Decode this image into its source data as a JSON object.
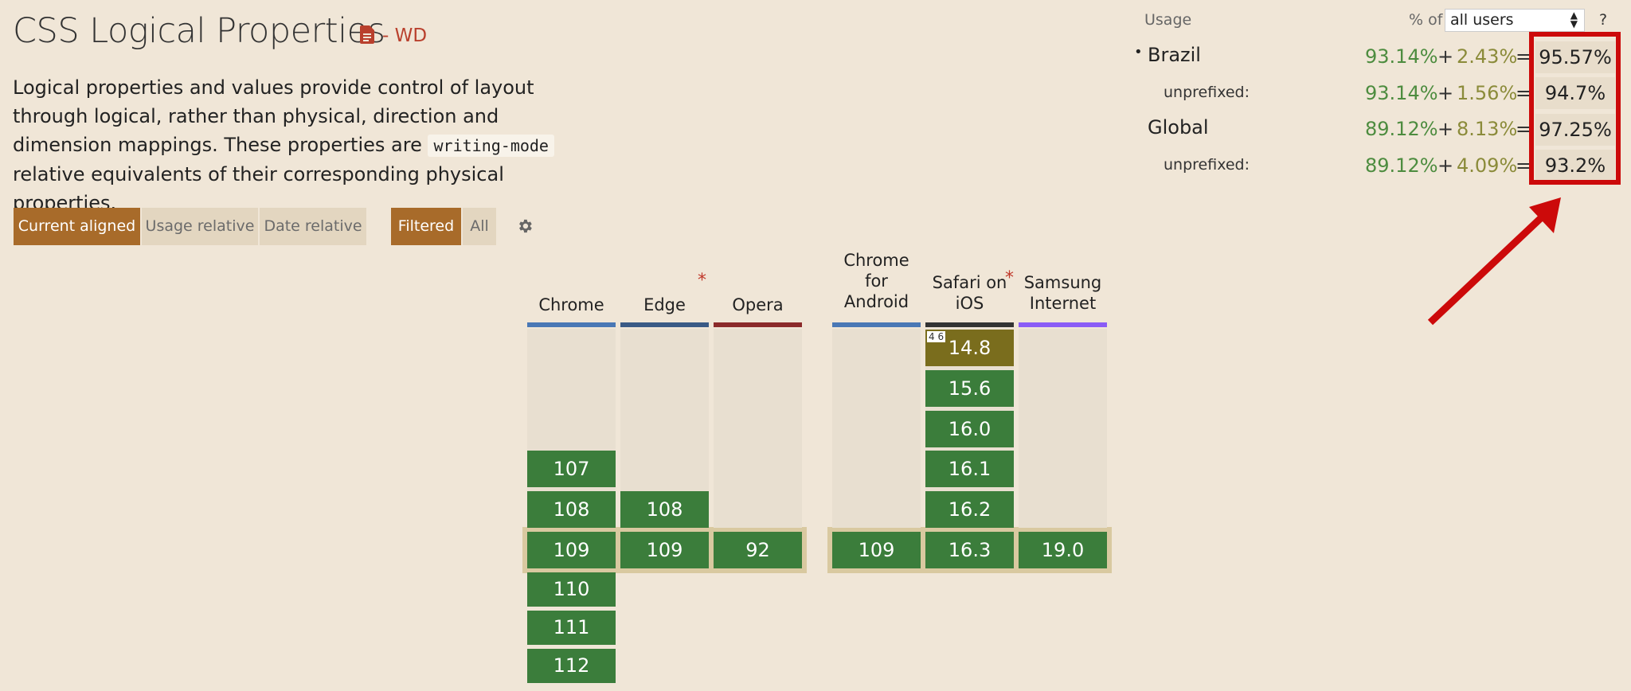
{
  "page": {
    "title": "CSS Logical Properties",
    "spec_icon": "document-icon",
    "spec_status": "- WD",
    "description_part1": "Logical properties and values provide control of layout through logical, rather than physical, direction and dimension mappings. These properties are",
    "description_code": "writing-mode",
    "description_part2": "relative equivalents of their corresponding physical properties."
  },
  "toolbar": {
    "view_modes": [
      "Current aligned",
      "Usage relative",
      "Date relative"
    ],
    "active_view": "Current aligned",
    "filters": [
      "Filtered",
      "All"
    ],
    "active_filter": "Filtered",
    "settings_icon": "gear-icon"
  },
  "usage": {
    "label": "Usage",
    "pct_of_label": "% of",
    "users_select": "all users",
    "help": "?",
    "rows": [
      {
        "label": "Brazil",
        "bullet": "•",
        "full": "93.14%",
        "plus": "+",
        "partial": "2.43%",
        "eq": "=",
        "total": "95.57%"
      },
      {
        "label": "unprefixed:",
        "full": "93.14%",
        "plus": "+",
        "partial": "1.56%",
        "eq": "=",
        "total": "94.7%"
      },
      {
        "label": "Global",
        "full": "89.12%",
        "plus": "+",
        "partial": "8.13%",
        "eq": "=",
        "total": "97.25%"
      },
      {
        "label": "unprefixed:",
        "full": "89.12%",
        "plus": "+",
        "partial": "4.09%",
        "eq": "=",
        "total": "93.2%"
      }
    ]
  },
  "annotation": {
    "highlight_color": "#cc0a0a"
  },
  "browsers": {
    "desktop": [
      {
        "name_lines": [
          "Chrome"
        ],
        "asterisk": false,
        "color": "#4a78b5",
        "versions": [
          "107",
          "108",
          "109",
          "110",
          "111",
          "112"
        ],
        "current": "109"
      },
      {
        "name_lines": [
          "Edge"
        ],
        "asterisk": true,
        "color": "#3a5a85",
        "versions": [
          "108",
          "109"
        ],
        "current": "109"
      },
      {
        "name_lines": [
          "Opera"
        ],
        "asterisk": false,
        "color": "#8b2a2a",
        "versions": [
          "92"
        ],
        "current": "92"
      }
    ],
    "mobile": [
      {
        "name_lines": [
          "Chrome",
          "for",
          "Android"
        ],
        "asterisk": false,
        "color": "#4a78b5",
        "versions": [
          "109"
        ],
        "current": "109"
      },
      {
        "name_lines": [
          "Safari on",
          "iOS"
        ],
        "asterisk": true,
        "color": "#333333",
        "versions": [
          "14.8",
          "15.6",
          "16.0",
          "16.1",
          "16.2",
          "16.3"
        ],
        "current": "16.3",
        "partial_versions": [
          "14.8"
        ],
        "notes": {
          "14.8": "4 6"
        }
      },
      {
        "name_lines": [
          "Samsung",
          "Internet"
        ],
        "asterisk": false,
        "color": "#8a5cf6",
        "versions": [
          "19.0"
        ],
        "current": "19.0"
      }
    ]
  },
  "colors": {
    "supported": "#3b7d3b",
    "partial": "#7a6d1d",
    "accent": "#a86b2a",
    "current_row": "#d9c9a0"
  }
}
